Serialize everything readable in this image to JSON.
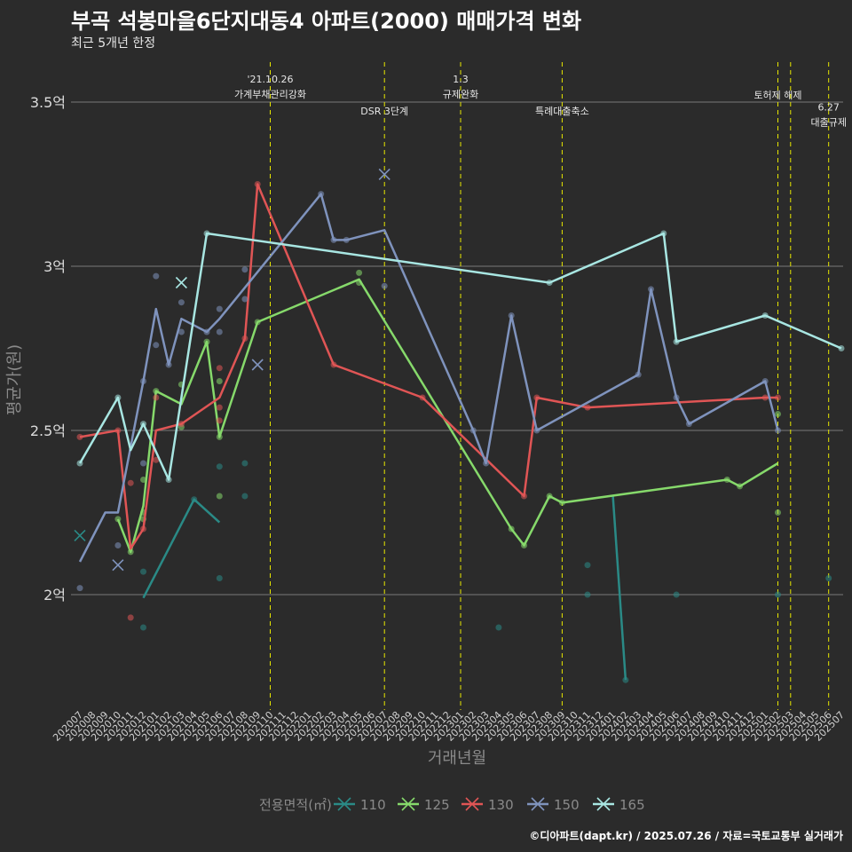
{
  "title": "부곡 석봉마을6단지대동4 아파트(2000) 매매가격 변화",
  "subtitle": "최근 5개년 한정",
  "credit": "©디아파트(dapt.kr) / 2025.07.26 / 자료=국토교통부 실거래가",
  "chart_data": {
    "type": "line",
    "xlabel": "거래년월",
    "ylabel": "평균가(원)",
    "ylim": [
      1.65,
      3.6
    ],
    "yticks": [
      {
        "v": 2.0,
        "label": "2억"
      },
      {
        "v": 2.5,
        "label": "2.5억"
      },
      {
        "v": 3.0,
        "label": "3억"
      },
      {
        "v": 3.5,
        "label": "3.5억"
      }
    ],
    "categories": [
      "202007",
      "202008",
      "202009",
      "202010",
      "202011",
      "202012",
      "202101",
      "202102",
      "202103",
      "202104",
      "202105",
      "202106",
      "202107",
      "202108",
      "202109",
      "202110",
      "202111",
      "202112",
      "202201",
      "202202",
      "202203",
      "202204",
      "202205",
      "202206",
      "202207",
      "202208",
      "202209",
      "202210",
      "202211",
      "202212",
      "202301",
      "202302",
      "202303",
      "202304",
      "202305",
      "202306",
      "202307",
      "202308",
      "202309",
      "202310",
      "202311",
      "202312",
      "202401",
      "202402",
      "202403",
      "202404",
      "202405",
      "202406",
      "202407",
      "202408",
      "202409",
      "202410",
      "202411",
      "202412",
      "202501",
      "202502",
      "202503",
      "202504",
      "202505",
      "202506",
      "202507"
    ],
    "grid": true,
    "legend_position": "bottom",
    "legend_title": "전용면적(㎡)",
    "series": [
      {
        "name": "110",
        "color": "#2a8a86",
        "line": [
          [
            "202012",
            1.99
          ],
          [
            "202104",
            2.29
          ],
          [
            "202106",
            2.22
          ],
          null,
          [
            "202401",
            2.3
          ],
          [
            "202402",
            1.74
          ],
          null,
          [
            "202406",
            2.0
          ]
        ],
        "points": [
          [
            "202012",
            1.9
          ],
          [
            "202012",
            2.07
          ],
          [
            "202104",
            2.29
          ],
          [
            "202106",
            2.05
          ],
          [
            "202106",
            2.39
          ],
          [
            "202108",
            2.3
          ],
          [
            "202108",
            2.4
          ],
          [
            "202304",
            1.9
          ],
          [
            "202311",
            2.0
          ],
          [
            "202311",
            2.09
          ],
          [
            "202402",
            1.74
          ],
          [
            "202406",
            2.0
          ],
          [
            "202502",
            2.0
          ],
          [
            "202506",
            2.05
          ]
        ],
        "crosses": [
          [
            "202007",
            2.18
          ]
        ]
      },
      {
        "name": "125",
        "color": "#86d96b",
        "line": [
          [
            "202010",
            2.23
          ],
          [
            "202011",
            2.13
          ],
          [
            "202012",
            2.27
          ],
          [
            "202101",
            2.62
          ],
          [
            "202103",
            2.58
          ],
          [
            "202105",
            2.77
          ],
          [
            "202106",
            2.48
          ],
          [
            "202109",
            2.83
          ],
          [
            "202205",
            2.96
          ],
          [
            "202305",
            2.2
          ],
          [
            "202306",
            2.15
          ],
          [
            "202308",
            2.3
          ],
          [
            "202309",
            2.28
          ],
          [
            "202410",
            2.35
          ],
          [
            "202411",
            2.33
          ],
          [
            "202502",
            2.4
          ]
        ],
        "points": [
          [
            "202010",
            2.23
          ],
          [
            "202011",
            2.13
          ],
          [
            "202012",
            2.23
          ],
          [
            "202012",
            2.25
          ],
          [
            "202012",
            2.35
          ],
          [
            "202101",
            2.62
          ],
          [
            "202103",
            2.51
          ],
          [
            "202103",
            2.64
          ],
          [
            "202105",
            2.77
          ],
          [
            "202106",
            2.3
          ],
          [
            "202106",
            2.48
          ],
          [
            "202106",
            2.65
          ],
          [
            "202109",
            2.83
          ],
          [
            "202205",
            2.95
          ],
          [
            "202205",
            2.98
          ],
          [
            "202305",
            2.2
          ],
          [
            "202306",
            2.15
          ],
          [
            "202308",
            2.3
          ],
          [
            "202309",
            2.28
          ],
          [
            "202410",
            2.35
          ],
          [
            "202411",
            2.33
          ],
          [
            "202502",
            2.25
          ],
          [
            "202502",
            2.55
          ]
        ],
        "crosses": []
      },
      {
        "name": "130",
        "color": "#e05555",
        "line": [
          [
            "202007",
            2.48
          ],
          [
            "202010",
            2.5
          ],
          [
            "202011",
            2.14
          ],
          [
            "202012",
            2.2
          ],
          [
            "202101",
            2.5
          ],
          [
            "202103",
            2.52
          ],
          [
            "202106",
            2.6
          ],
          [
            "202108",
            2.78
          ],
          [
            "202109",
            3.25
          ],
          [
            "202203",
            2.7
          ],
          [
            "202210",
            2.6
          ],
          [
            "202306",
            2.3
          ],
          [
            "202307",
            2.6
          ],
          [
            "202311",
            2.57
          ],
          [
            "202501",
            2.6
          ],
          [
            "202502",
            2.6
          ]
        ],
        "points": [
          [
            "202007",
            2.48
          ],
          [
            "202010",
            2.5
          ],
          [
            "202011",
            1.93
          ],
          [
            "202011",
            2.34
          ],
          [
            "202012",
            2.2
          ],
          [
            "202101",
            2.41
          ],
          [
            "202101",
            2.6
          ],
          [
            "202103",
            2.52
          ],
          [
            "202106",
            2.53
          ],
          [
            "202106",
            2.57
          ],
          [
            "202106",
            2.69
          ],
          [
            "202108",
            2.78
          ],
          [
            "202109",
            3.25
          ],
          [
            "202203",
            2.7
          ],
          [
            "202210",
            2.6
          ],
          [
            "202306",
            2.3
          ],
          [
            "202307",
            2.6
          ],
          [
            "202311",
            2.57
          ],
          [
            "202501",
            2.6
          ],
          [
            "202502",
            2.6
          ]
        ],
        "crosses": []
      },
      {
        "name": "150",
        "color": "#7f93bd",
        "line": [
          [
            "202007",
            2.1
          ],
          [
            "202009",
            2.25
          ],
          [
            "202010",
            2.25
          ],
          [
            "202011",
            2.45
          ],
          [
            "202012",
            2.65
          ],
          [
            "202101",
            2.87
          ],
          [
            "202102",
            2.7
          ],
          [
            "202103",
            2.84
          ],
          [
            "202105",
            2.8
          ],
          [
            "202106",
            2.84
          ],
          [
            "202202",
            3.22
          ],
          [
            "202203",
            3.08
          ],
          [
            "202204",
            3.08
          ],
          [
            "202207",
            3.11
          ],
          [
            "202302",
            2.5
          ],
          [
            "202303",
            2.4
          ],
          [
            "202305",
            2.85
          ],
          [
            "202307",
            2.5
          ],
          [
            "202403",
            2.67
          ],
          [
            "202404",
            2.93
          ],
          [
            "202406",
            2.6
          ],
          [
            "202407",
            2.52
          ],
          [
            "202501",
            2.65
          ],
          [
            "202502",
            2.5
          ]
        ],
        "points": [
          [
            "202007",
            2.02
          ],
          [
            "202010",
            2.15
          ],
          [
            "202012",
            2.4
          ],
          [
            "202012",
            2.65
          ],
          [
            "202101",
            2.76
          ],
          [
            "202101",
            2.97
          ],
          [
            "202102",
            2.7
          ],
          [
            "202103",
            2.8
          ],
          [
            "202103",
            2.89
          ],
          [
            "202105",
            2.8
          ],
          [
            "202106",
            2.8
          ],
          [
            "202106",
            2.87
          ],
          [
            "202108",
            2.9
          ],
          [
            "202108",
            2.99
          ],
          [
            "202202",
            3.22
          ],
          [
            "202203",
            3.08
          ],
          [
            "202204",
            3.08
          ],
          [
            "202207",
            2.94
          ],
          [
            "202302",
            2.5
          ],
          [
            "202303",
            2.4
          ],
          [
            "202305",
            2.85
          ],
          [
            "202307",
            2.5
          ],
          [
            "202403",
            2.67
          ],
          [
            "202404",
            2.93
          ],
          [
            "202406",
            2.6
          ],
          [
            "202407",
            2.52
          ],
          [
            "202501",
            2.65
          ],
          [
            "202502",
            2.5
          ]
        ],
        "crosses": [
          [
            "202010",
            2.09
          ],
          [
            "202109",
            2.7
          ],
          [
            "202207",
            3.28
          ]
        ]
      },
      {
        "name": "165",
        "color": "#a8e6e2",
        "line": [
          [
            "202007",
            2.4
          ],
          [
            "202010",
            2.6
          ],
          [
            "202011",
            2.44
          ],
          [
            "202012",
            2.52
          ],
          [
            "202102",
            2.35
          ],
          [
            "202105",
            3.1
          ],
          [
            "202308",
            2.95
          ],
          [
            "202405",
            3.1
          ],
          [
            "202406",
            2.77
          ],
          [
            "202501",
            2.85
          ],
          [
            "202507",
            2.75
          ]
        ],
        "points": [
          [
            "202007",
            2.4
          ],
          [
            "202010",
            2.6
          ],
          [
            "202012",
            2.52
          ],
          [
            "202102",
            2.35
          ],
          [
            "202105",
            3.1
          ],
          [
            "202308",
            2.95
          ],
          [
            "202405",
            3.1
          ],
          [
            "202406",
            2.77
          ],
          [
            "202501",
            2.85
          ],
          [
            "202507",
            2.75
          ]
        ],
        "crosses": [
          [
            "202103",
            2.95
          ]
        ]
      }
    ],
    "events": [
      {
        "x": "202110",
        "labels": [
          "'21.10.26",
          "가계부채관리강화"
        ],
        "row": 0
      },
      {
        "x": "202207",
        "labels": [
          "DSR 3단계"
        ],
        "row": 2
      },
      {
        "x": "202301",
        "labels": [
          "1.3",
          "규제완화"
        ],
        "row": 0
      },
      {
        "x": "202309",
        "labels": [
          "특례대출축소"
        ],
        "row": 2
      },
      {
        "x": "202502",
        "labels": [
          "토허제 해제"
        ],
        "row": 1
      },
      {
        "x": "202503",
        "labels": [],
        "row": 0
      },
      {
        "x": "202506",
        "labels": [
          "6.27",
          "대출규제"
        ],
        "row": 1.75
      }
    ]
  }
}
